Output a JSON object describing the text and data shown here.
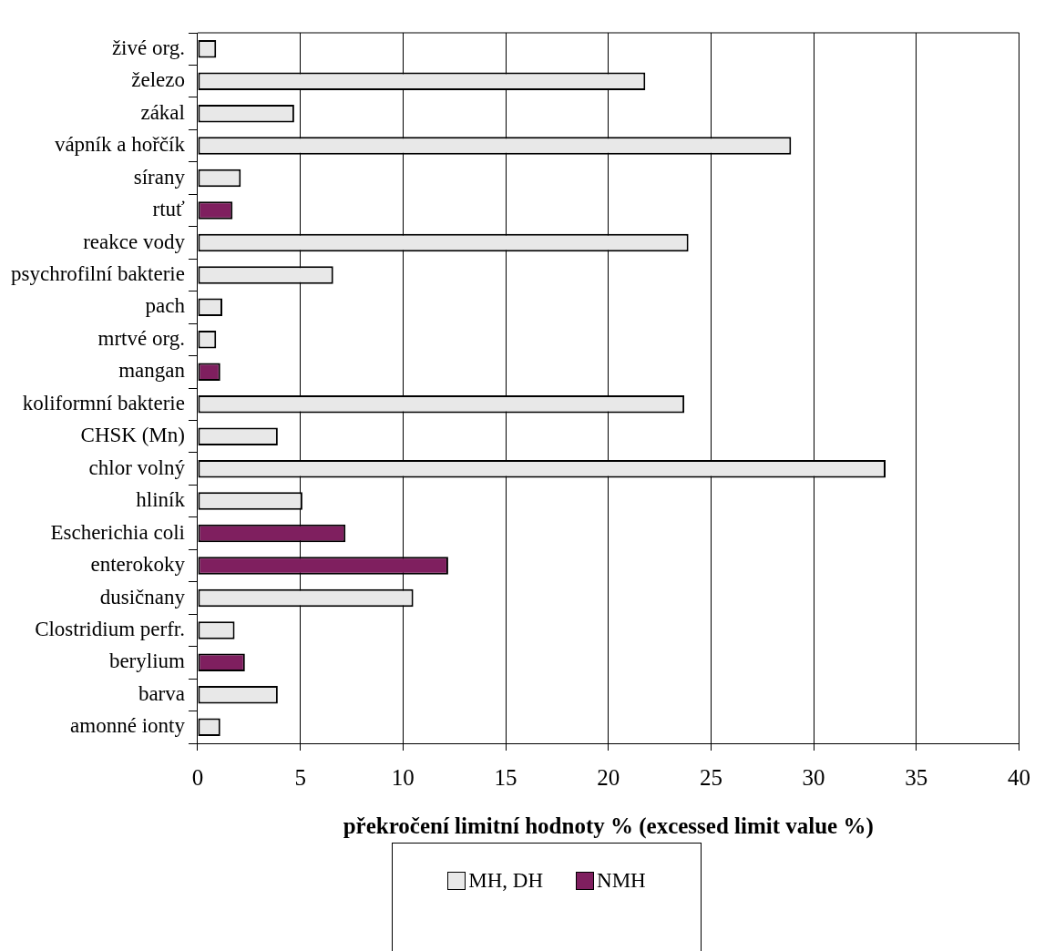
{
  "chart_data": {
    "type": "bar",
    "orientation": "horizontal",
    "xlabel": "překročení limitní hodnoty % (excessed limit value %)",
    "categories": [
      "živé org.",
      "železo",
      "zákal",
      "vápník a hořčík",
      "sírany",
      "rtuť",
      "reakce vody",
      "psychrofilní bakterie",
      "pach",
      "mrtvé org.",
      "mangan",
      "koliformní bakterie",
      "CHSK (Mn)",
      "chlor volný",
      "hliník",
      "Escherichia coli",
      "enterokoky",
      "dusičnany",
      "Clostridium perfr.",
      "berylium",
      "barva",
      "amonné ionty"
    ],
    "series": [
      {
        "name": "MH, DH",
        "color": "#e8e8e8",
        "values": [
          0.9,
          21.8,
          4.7,
          28.9,
          2.1,
          null,
          23.9,
          6.6,
          1.2,
          0.9,
          null,
          23.7,
          3.9,
          33.5,
          5.1,
          null,
          null,
          10.5,
          1.8,
          null,
          3.9,
          1.1
        ]
      },
      {
        "name": "NMH",
        "color": "#7f1f5f",
        "values": [
          null,
          null,
          null,
          null,
          null,
          1.7,
          null,
          null,
          null,
          null,
          1.1,
          null,
          null,
          null,
          null,
          7.2,
          12.2,
          null,
          null,
          2.3,
          null,
          null
        ]
      }
    ],
    "xlim": [
      0,
      40
    ],
    "xticks": [
      0,
      5,
      10,
      15,
      20,
      25,
      30,
      35,
      40
    ],
    "grid": "x",
    "legend": "bottom"
  }
}
